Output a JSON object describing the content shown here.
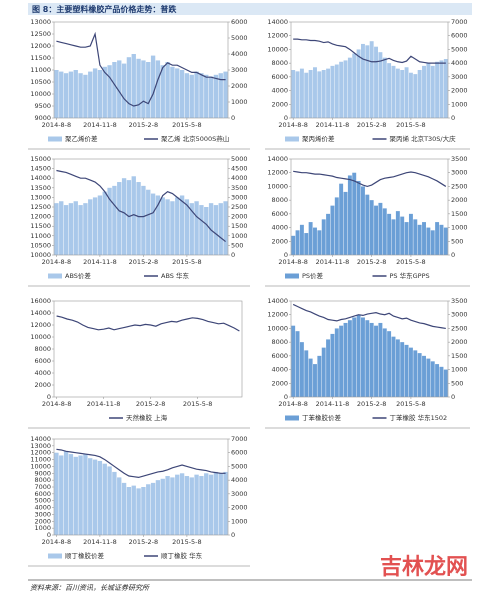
{
  "header": {
    "title": "图 8：主要塑料橡胶产品价格走势：普跌"
  },
  "footer": {
    "source": "资料来源：百川资讯，长城证券研究所",
    "watermark": "吉林龙网"
  },
  "chart_data": [
    {
      "type": "combo",
      "categories": [
        "2014-8-8",
        null,
        null,
        null,
        null,
        null,
        null,
        null,
        null,
        "2014-11-8",
        null,
        null,
        null,
        null,
        null,
        null,
        null,
        null,
        "2015-2-8",
        null,
        null,
        null,
        null,
        null,
        null,
        null,
        null,
        "2015-5-8",
        null,
        null,
        null,
        null,
        null,
        null,
        null,
        null
      ],
      "ylim": [
        9000,
        13000
      ],
      "yticks": [
        9000,
        9500,
        10000,
        10500,
        11000,
        11500,
        12000,
        12500,
        13000
      ],
      "y2lim": [
        0,
        6000
      ],
      "y2ticks": [
        0,
        1000,
        2000,
        3000,
        4000,
        5000,
        6000
      ],
      "series": [
        {
          "name": "聚乙烯价差",
          "type": "bar",
          "axis": "y2",
          "color": "#a9c8ea",
          "values": [
            3000,
            2900,
            2800,
            2900,
            3000,
            2800,
            2700,
            2900,
            3100,
            3000,
            3200,
            3300,
            3500,
            3600,
            3400,
            3800,
            4000,
            3700,
            3600,
            3500,
            3900,
            3600,
            3300,
            3500,
            3200,
            3100,
            3000,
            2800,
            2700,
            2900,
            2800,
            2700,
            2600,
            2700,
            2800,
            2900
          ]
        },
        {
          "name": "聚乙烯 北京5000S燕山",
          "type": "line",
          "axis": "y",
          "color": "#3d4677",
          "values": [
            12200,
            12150,
            12100,
            12050,
            12000,
            11950,
            11950,
            12000,
            12500,
            11200,
            10900,
            10700,
            10400,
            10100,
            9800,
            9600,
            9500,
            9550,
            9700,
            9600,
            10000,
            10600,
            11100,
            11300,
            11200,
            11200,
            11100,
            11000,
            10900,
            10900,
            10800,
            10700,
            10700,
            10650,
            10600,
            10600
          ]
        }
      ]
    },
    {
      "type": "combo",
      "categories": [
        "2014-8-8",
        null,
        null,
        null,
        null,
        null,
        null,
        null,
        null,
        "2014-11-8",
        null,
        null,
        null,
        null,
        null,
        null,
        null,
        null,
        "2015-2-8",
        null,
        null,
        null,
        null,
        null,
        null,
        null,
        null,
        "2015-5-8",
        null,
        null,
        null,
        null,
        null,
        null,
        null,
        null
      ],
      "ylim": [
        0,
        14000
      ],
      "yticks": [
        0,
        2000,
        4000,
        6000,
        8000,
        10000,
        12000,
        14000
      ],
      "y2lim": [
        0,
        7000
      ],
      "y2ticks": [
        0,
        1000,
        2000,
        3000,
        4000,
        5000,
        6000,
        7000
      ],
      "series": [
        {
          "name": "聚丙烯价差",
          "type": "bar",
          "axis": "y2",
          "color": "#a9c8ea",
          "values": [
            3500,
            3400,
            3600,
            3300,
            3500,
            3700,
            3400,
            3500,
            3600,
            3800,
            3900,
            4100,
            4200,
            4400,
            4700,
            5000,
            5400,
            5300,
            5600,
            5200,
            4800,
            4400,
            4000,
            3800,
            3600,
            3500,
            3700,
            3300,
            3200,
            3500,
            3800,
            4000,
            3800,
            4100,
            4200,
            4300
          ]
        },
        {
          "name": "聚丙烯 北京T30S/大庆",
          "type": "line",
          "axis": "y",
          "color": "#3d4677",
          "values": [
            11500,
            11500,
            11400,
            11400,
            11300,
            11300,
            11200,
            11000,
            11100,
            10800,
            10600,
            10500,
            10400,
            10000,
            9500,
            9000,
            8600,
            8400,
            8200,
            8200,
            8300,
            8500,
            8700,
            8400,
            8200,
            8100,
            8300,
            9000,
            8600,
            8200,
            8100,
            8000,
            8000,
            8000,
            8000,
            8000
          ]
        }
      ]
    },
    {
      "type": "combo",
      "categories": [
        "2014-8-8",
        null,
        null,
        null,
        null,
        null,
        null,
        null,
        null,
        "2014-11-8",
        null,
        null,
        null,
        null,
        null,
        null,
        null,
        null,
        "2015-2-8",
        null,
        null,
        null,
        null,
        null,
        null,
        null,
        null,
        "2015-5-8",
        null,
        null,
        null,
        null,
        null,
        null,
        null,
        null
      ],
      "ylim": [
        10000,
        15000
      ],
      "yticks": [
        10000,
        10500,
        11000,
        11500,
        12000,
        12500,
        13000,
        13500,
        14000,
        14500,
        15000
      ],
      "y2lim": [
        0,
        5000
      ],
      "y2ticks": [
        0,
        500,
        1000,
        1500,
        2000,
        2500,
        3000,
        3500,
        4000,
        4500,
        5000
      ],
      "series": [
        {
          "name": "ABS价差",
          "type": "bar",
          "axis": "y2",
          "color": "#a9c8ea",
          "values": [
            2700,
            2800,
            2600,
            2700,
            2800,
            2600,
            2700,
            2900,
            3000,
            3100,
            3300,
            3500,
            3600,
            3800,
            4000,
            3900,
            4100,
            3800,
            3600,
            3400,
            3200,
            3100,
            3000,
            2900,
            2800,
            3000,
            3100,
            2900,
            2700,
            2800,
            2600,
            2500,
            2700,
            2600,
            2700,
            2800
          ]
        },
        {
          "name": "ABS 华东",
          "type": "line",
          "axis": "y",
          "color": "#3d4677",
          "values": [
            14400,
            14350,
            14300,
            14200,
            14100,
            14000,
            14000,
            13900,
            13800,
            13600,
            13300,
            12900,
            12600,
            12300,
            12200,
            12000,
            12100,
            12000,
            12000,
            12100,
            12200,
            12600,
            13100,
            13300,
            13200,
            13000,
            12800,
            12600,
            12300,
            12000,
            11800,
            11600,
            11300,
            11100,
            10900,
            10700
          ]
        }
      ]
    },
    {
      "type": "combo",
      "categories": [
        "2014-8-8",
        null,
        null,
        null,
        null,
        null,
        null,
        null,
        null,
        "2014-11-8",
        null,
        null,
        null,
        null,
        null,
        null,
        null,
        null,
        "2015-2-8",
        null,
        null,
        null,
        null,
        null,
        null,
        null,
        null,
        "2015-5-8",
        null,
        null,
        null,
        null,
        null,
        null,
        null,
        null
      ],
      "ylim": [
        0,
        14000
      ],
      "yticks": [
        0,
        2000,
        4000,
        6000,
        8000,
        10000,
        12000,
        14000
      ],
      "y2lim": [
        0,
        3500
      ],
      "y2ticks": [
        0,
        500,
        1000,
        1500,
        2000,
        2500,
        3000,
        3500
      ],
      "series": [
        {
          "name": "PS价差",
          "type": "bar",
          "axis": "y2",
          "color": "#6b9fd6",
          "values": [
            700,
            900,
            1100,
            800,
            1200,
            1000,
            900,
            1300,
            1500,
            1800,
            2100,
            2600,
            2300,
            2900,
            3000,
            2700,
            2500,
            2200,
            2000,
            1800,
            1900,
            1700,
            1500,
            1300,
            1600,
            1400,
            1200,
            1500,
            1300,
            1100,
            1200,
            1000,
            900,
            1200,
            1100,
            1000
          ]
        },
        {
          "name": "PS 华东GPPS",
          "type": "line",
          "axis": "y",
          "color": "#3d4677",
          "values": [
            12200,
            12100,
            12000,
            12000,
            11900,
            11800,
            11800,
            11700,
            11600,
            11500,
            11300,
            11200,
            11100,
            11000,
            10800,
            10500,
            10200,
            10000,
            10200,
            10600,
            11000,
            11200,
            11300,
            11400,
            11600,
            11800,
            12000,
            12100,
            12000,
            11800,
            11600,
            11400,
            11100,
            10800,
            10400,
            10000
          ]
        }
      ]
    },
    {
      "type": "line",
      "categories": [
        "2014-8-8",
        null,
        null,
        null,
        null,
        null,
        null,
        null,
        null,
        "2014-11-8",
        null,
        null,
        null,
        null,
        null,
        null,
        null,
        null,
        "2015-2-8",
        null,
        null,
        null,
        null,
        null,
        null,
        null,
        null,
        "2015-5-8",
        null,
        null,
        null,
        null,
        null,
        null,
        null,
        null
      ],
      "ylim": [
        0,
        16000
      ],
      "yticks": [
        0,
        2000,
        4000,
        6000,
        8000,
        10000,
        12000,
        14000,
        16000
      ],
      "series": [
        {
          "name": "天然橡胶 上海",
          "type": "line",
          "axis": "y",
          "color": "#3d4677",
          "values": [
            13500,
            13300,
            13000,
            12800,
            12500,
            12000,
            11600,
            11400,
            11200,
            11300,
            11500,
            11200,
            11400,
            11600,
            11800,
            12000,
            11900,
            12100,
            12000,
            11800,
            12200,
            12400,
            12600,
            12500,
            12800,
            13000,
            13200,
            13100,
            12900,
            12600,
            12400,
            12200,
            12300,
            11900,
            11500,
            11000
          ]
        }
      ]
    },
    {
      "type": "combo",
      "categories": [
        "2014-8-8",
        null,
        null,
        null,
        null,
        null,
        null,
        null,
        null,
        "2014-11-8",
        null,
        null,
        null,
        null,
        null,
        null,
        null,
        null,
        "2015-2-8",
        null,
        null,
        null,
        null,
        null,
        null,
        null,
        null,
        "2015-5-8",
        null,
        null,
        null,
        null,
        null,
        null,
        null,
        null
      ],
      "ylim": [
        0,
        14000
      ],
      "yticks": [
        0,
        2000,
        4000,
        6000,
        8000,
        10000,
        12000,
        14000
      ],
      "y2lim": [
        0,
        3500
      ],
      "y2ticks": [
        0,
        500,
        1000,
        1500,
        2000,
        2500,
        3000,
        3500
      ],
      "series": [
        {
          "name": "丁苯橡胶价差",
          "type": "bar",
          "axis": "y2",
          "color": "#6b9fd6",
          "values": [
            2600,
            2400,
            2000,
            1700,
            1400,
            1200,
            1500,
            1800,
            2100,
            2300,
            2500,
            2600,
            2700,
            2800,
            2900,
            3000,
            2900,
            2800,
            2700,
            2600,
            2700,
            2500,
            2400,
            2200,
            2100,
            2000,
            1900,
            1800,
            1700,
            1600,
            1500,
            1400,
            1300,
            1200,
            1100,
            1000
          ]
        },
        {
          "name": "丁苯橡胶 华东1502",
          "type": "line",
          "axis": "y",
          "color": "#3d4677",
          "values": [
            13500,
            13200,
            12900,
            12600,
            12400,
            12100,
            11800,
            11600,
            11300,
            11200,
            11100,
            11300,
            11400,
            11600,
            11800,
            12000,
            11900,
            12100,
            12200,
            12300,
            12100,
            12000,
            12200,
            11800,
            11600,
            11400,
            11500,
            11200,
            11000,
            10800,
            10700,
            10500,
            10300,
            10200,
            10100,
            10000
          ]
        }
      ]
    },
    {
      "type": "combo",
      "categories": [
        "2014-8-8",
        null,
        null,
        null,
        null,
        null,
        null,
        null,
        null,
        "2014-11-8",
        null,
        null,
        null,
        null,
        null,
        null,
        null,
        null,
        "2015-2-8",
        null,
        null,
        null,
        null,
        null,
        null,
        null,
        null,
        "2015-5-8",
        null,
        null,
        null,
        null,
        null,
        null,
        null,
        null
      ],
      "ylim": [
        0,
        14000
      ],
      "yticks": [
        0,
        1000,
        2000,
        3000,
        4000,
        5000,
        6000,
        7000,
        8000,
        9000,
        10000,
        11000,
        12000,
        13000,
        14000
      ],
      "y2lim": [
        0,
        7000
      ],
      "y2ticks": [
        0,
        1000,
        2000,
        3000,
        4000,
        5000,
        6000,
        7000
      ],
      "series": [
        {
          "name": "顺丁橡胶价差",
          "type": "bar",
          "axis": "y2",
          "color": "#a9c8ea",
          "values": [
            6000,
            5800,
            6100,
            5900,
            5700,
            5800,
            5900,
            5600,
            5500,
            5400,
            5200,
            5000,
            4600,
            4200,
            3800,
            3500,
            3600,
            3400,
            3500,
            3700,
            3800,
            4000,
            4100,
            4300,
            4200,
            4400,
            4500,
            4300,
            4200,
            4400,
            4300,
            4500,
            4400,
            4600,
            4500,
            4600
          ]
        },
        {
          "name": "顺丁橡胶 华东",
          "type": "line",
          "axis": "y",
          "color": "#3d4677",
          "values": [
            12500,
            12400,
            12200,
            12100,
            12000,
            11900,
            11800,
            11700,
            11600,
            11400,
            11000,
            10500,
            10000,
            9500,
            9000,
            8600,
            8500,
            8400,
            8600,
            8800,
            9000,
            9200,
            9300,
            9500,
            9800,
            10000,
            10200,
            10000,
            9800,
            9600,
            9500,
            9400,
            9200,
            9100,
            9000,
            9000
          ]
        }
      ]
    }
  ]
}
